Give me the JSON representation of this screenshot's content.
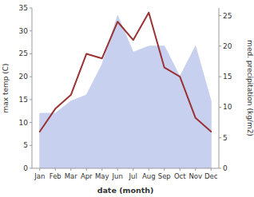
{
  "chart_data": {
    "type": "line",
    "categories": [
      "Jan",
      "Feb",
      "Mar",
      "Apr",
      "May",
      "Jun",
      "Jul",
      "Aug",
      "Sep",
      "Oct",
      "Nov",
      "Dec"
    ],
    "xlabel": "date (month)",
    "ylabel": "max temp (C)",
    "y2label": "med. precipitation (kg/m2)",
    "series": [
      {
        "type": "line",
        "color": "#993333",
        "values": [
          8,
          13,
          16,
          25,
          24,
          32,
          28,
          34,
          22,
          20,
          11,
          8
        ]
      },
      {
        "type": "area",
        "axis": "y2",
        "color": "#c8d0f0",
        "values": [
          9,
          9,
          11,
          12,
          17,
          25,
          19,
          20,
          20,
          15,
          20,
          11
        ]
      }
    ],
    "ylim": [
      0,
      35
    ],
    "yticks": [
      0,
      5,
      10,
      15,
      20,
      25,
      30,
      35
    ],
    "y2lim": [
      0,
      26.25
    ],
    "y2ticks": [
      0,
      5,
      10,
      15,
      20,
      25
    ],
    "grid": false
  }
}
